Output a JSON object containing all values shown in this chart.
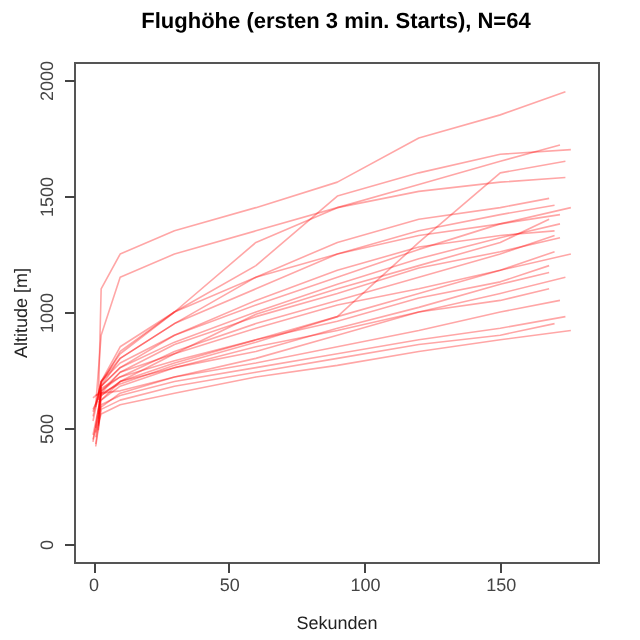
{
  "chart_data": {
    "type": "line",
    "title": "Flughöhe (ersten 3 min. Starts), N=64",
    "xlabel": "Sekunden",
    "ylabel": "Altitude [m]",
    "xlim": [
      -7,
      186
    ],
    "xticks": [
      0,
      50,
      100,
      150
    ],
    "ylim": [
      -78,
      2078
    ],
    "yticks": [
      0,
      500,
      1000,
      1500,
      2000
    ],
    "grid": false,
    "legend": false,
    "series": [
      {
        "color": "#ff0000",
        "x": [
          0,
          3,
          10,
          30,
          60,
          90,
          120,
          150,
          168
        ],
        "values": [
          470,
          640,
          700,
          780,
          880,
          960,
          1060,
          1130,
          1200
        ]
      },
      {
        "color": "#ff0000",
        "x": [
          1,
          3,
          10,
          30,
          60,
          90,
          120,
          150,
          170
        ],
        "values": [
          500,
          660,
          720,
          830,
          950,
          1050,
          1150,
          1250,
          1330
        ]
      },
      {
        "color": "#ff0000",
        "x": [
          2,
          3,
          10,
          30,
          60,
          90,
          120,
          150,
          172
        ],
        "values": [
          520,
          680,
          760,
          870,
          1000,
          1120,
          1230,
          1320,
          1380
        ]
      },
      {
        "color": "#ff0000",
        "x": [
          0,
          3,
          10,
          30,
          60,
          90,
          120,
          150,
          174
        ],
        "values": [
          450,
          600,
          640,
          700,
          760,
          820,
          880,
          930,
          980
        ]
      },
      {
        "color": "#ff0000",
        "x": [
          1,
          3,
          10,
          30,
          60,
          90,
          120,
          150,
          176
        ],
        "values": [
          480,
          560,
          600,
          650,
          720,
          770,
          830,
          880,
          920
        ]
      },
      {
        "color": "#ff0000",
        "x": [
          2,
          3,
          10,
          30,
          60,
          90,
          120,
          150,
          168
        ],
        "values": [
          510,
          620,
          700,
          820,
          990,
          1100,
          1200,
          1300,
          1400
        ]
      },
      {
        "color": "#ff0000",
        "x": [
          0,
          3,
          10,
          30,
          60,
          90,
          120,
          150,
          170
        ],
        "values": [
          550,
          700,
          800,
          950,
          1100,
          1250,
          1350,
          1420,
          1460
        ]
      },
      {
        "color": "#ff0000",
        "x": [
          1,
          3,
          10,
          30,
          60,
          90,
          120,
          150,
          172
        ],
        "values": [
          600,
          900,
          1150,
          1250,
          1350,
          1450,
          1550,
          1650,
          1720
        ]
      },
      {
        "color": "#ff0000",
        "x": [
          2,
          3,
          10,
          30,
          60,
          90,
          120,
          150,
          174
        ],
        "values": [
          620,
          1100,
          1250,
          1350,
          1450,
          1560,
          1750,
          1850,
          1950
        ]
      },
      {
        "color": "#ff0000",
        "x": [
          0,
          3,
          10,
          30,
          60,
          90,
          120,
          150,
          176
        ],
        "values": [
          530,
          700,
          850,
          1000,
          1200,
          1500,
          1600,
          1680,
          1700
        ]
      },
      {
        "color": "#ff0000",
        "x": [
          1,
          3,
          10,
          30,
          60,
          90,
          120,
          150,
          168
        ],
        "values": [
          460,
          640,
          700,
          760,
          850,
          920,
          1000,
          1050,
          1100
        ]
      },
      {
        "color": "#ff0000",
        "x": [
          2,
          3,
          10,
          30,
          60,
          90,
          120,
          150,
          170
        ],
        "values": [
          490,
          680,
          760,
          900,
          1050,
          1180,
          1280,
          1330,
          1350
        ]
      },
      {
        "color": "#ff0000",
        "x": [
          0,
          3,
          10,
          30,
          60,
          90,
          120,
          150,
          172
        ],
        "values": [
          440,
          650,
          740,
          860,
          980,
          1080,
          1190,
          1260,
          1320
        ]
      },
      {
        "color": "#ff0000",
        "x": [
          1,
          3,
          10,
          30,
          60,
          90,
          120,
          150,
          174
        ],
        "values": [
          430,
          590,
          650,
          720,
          800,
          900,
          1000,
          1080,
          1150
        ]
      },
      {
        "color": "#ff0000",
        "x": [
          2,
          3,
          10,
          30,
          60,
          90,
          120,
          150,
          176
        ],
        "values": [
          540,
          670,
          720,
          790,
          880,
          980,
          1080,
          1180,
          1250
        ]
      },
      {
        "color": "#ff0000",
        "x": [
          0,
          3,
          10,
          30,
          60,
          90,
          120,
          150,
          168
        ],
        "values": [
          570,
          680,
          800,
          950,
          1150,
          1300,
          1400,
          1450,
          1490
        ]
      },
      {
        "color": "#ff0000",
        "x": [
          1,
          3,
          10,
          30,
          60,
          90,
          120,
          150,
          170
        ],
        "values": [
          420,
          580,
          620,
          680,
          740,
          800,
          860,
          900,
          950
        ]
      },
      {
        "color": "#ff0000",
        "x": [
          2,
          3,
          10,
          30,
          60,
          90,
          120,
          150,
          176
        ],
        "values": [
          560,
          700,
          780,
          900,
          1030,
          1150,
          1270,
          1380,
          1450
        ]
      },
      {
        "color": "#ff0000",
        "x": [
          0,
          3,
          10,
          30,
          60,
          90,
          120,
          150,
          174
        ],
        "values": [
          580,
          650,
          690,
          770,
          870,
          980,
          1300,
          1600,
          1650
        ]
      },
      {
        "color": "#ff0000",
        "x": [
          1,
          3,
          10,
          30,
          60,
          90,
          120,
          150,
          172
        ],
        "values": [
          590,
          690,
          830,
          1000,
          1150,
          1250,
          1330,
          1380,
          1420
        ]
      },
      {
        "color": "#ff0000",
        "x": [
          2,
          3,
          10,
          30,
          60,
          90,
          120,
          150,
          168
        ],
        "values": [
          610,
          620,
          680,
          760,
          830,
          930,
          1020,
          1120,
          1170
        ]
      },
      {
        "color": "#ff0000",
        "x": [
          0,
          3,
          10,
          30,
          60,
          90,
          120,
          150,
          170
        ],
        "values": [
          630,
          660,
          740,
          820,
          930,
          1030,
          1100,
          1180,
          1260
        ]
      },
      {
        "color": "#ff0000",
        "x": [
          1,
          3,
          10,
          30,
          60,
          90,
          120,
          150,
          172
        ],
        "values": [
          640,
          650,
          660,
          720,
          780,
          850,
          920,
          1000,
          1050
        ]
      },
      {
        "color": "#ff0000",
        "x": [
          2,
          3,
          10,
          30,
          60,
          90,
          120,
          150,
          174
        ],
        "values": [
          650,
          700,
          820,
          1000,
          1300,
          1450,
          1520,
          1560,
          1580
        ]
      }
    ]
  }
}
